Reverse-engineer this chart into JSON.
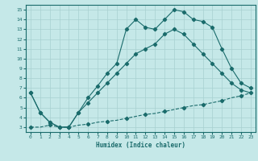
{
  "title": "",
  "xlabel": "Humidex (Indice chaleur)",
  "bg_color": "#c5e8e8",
  "line_color": "#1a6b6b",
  "grid_color": "#a8d0d0",
  "xlim": [
    -0.5,
    23.5
  ],
  "ylim": [
    2.5,
    15.5
  ],
  "xticks": [
    0,
    1,
    2,
    3,
    4,
    5,
    6,
    7,
    8,
    9,
    10,
    11,
    12,
    13,
    14,
    15,
    16,
    17,
    18,
    19,
    20,
    21,
    22,
    23
  ],
  "yticks": [
    3,
    4,
    5,
    6,
    7,
    8,
    9,
    10,
    11,
    12,
    13,
    14,
    15
  ],
  "line1_x": [
    0,
    1,
    2,
    3,
    4,
    5,
    6,
    7,
    8,
    9,
    10,
    11,
    12,
    13,
    14,
    15,
    16,
    17,
    18,
    19,
    20,
    21,
    22,
    23
  ],
  "line1_y": [
    6.5,
    4.5,
    3.5,
    3.0,
    3.0,
    4.5,
    6.0,
    7.2,
    8.5,
    9.5,
    13.0,
    14.0,
    13.2,
    13.0,
    14.0,
    15.0,
    14.8,
    14.0,
    13.8,
    13.2,
    11.0,
    9.0,
    7.5,
    7.0
  ],
  "line2_x": [
    0,
    1,
    2,
    3,
    4,
    5,
    6,
    7,
    8,
    9,
    10,
    11,
    12,
    13,
    14,
    15,
    16,
    17,
    18,
    19,
    20,
    21,
    22,
    23
  ],
  "line2_y": [
    6.5,
    4.5,
    3.5,
    3.0,
    3.0,
    4.5,
    5.5,
    6.5,
    7.5,
    8.5,
    9.5,
    10.5,
    11.0,
    11.5,
    12.5,
    13.0,
    12.5,
    11.5,
    10.5,
    9.5,
    8.5,
    7.5,
    6.8,
    6.5
  ],
  "line3_x": [
    0,
    1,
    2,
    3,
    4,
    5,
    6,
    7,
    8,
    9,
    10,
    11,
    12,
    13,
    14,
    15,
    16,
    17,
    18,
    19,
    20,
    21,
    22,
    23
  ],
  "line3_y": [
    3.0,
    3.0,
    3.2,
    3.0,
    3.0,
    3.2,
    3.3,
    3.5,
    3.6,
    3.7,
    3.9,
    4.1,
    4.3,
    4.4,
    4.6,
    4.8,
    5.0,
    5.2,
    5.3,
    5.5,
    5.7,
    6.0,
    6.2,
    6.5
  ]
}
